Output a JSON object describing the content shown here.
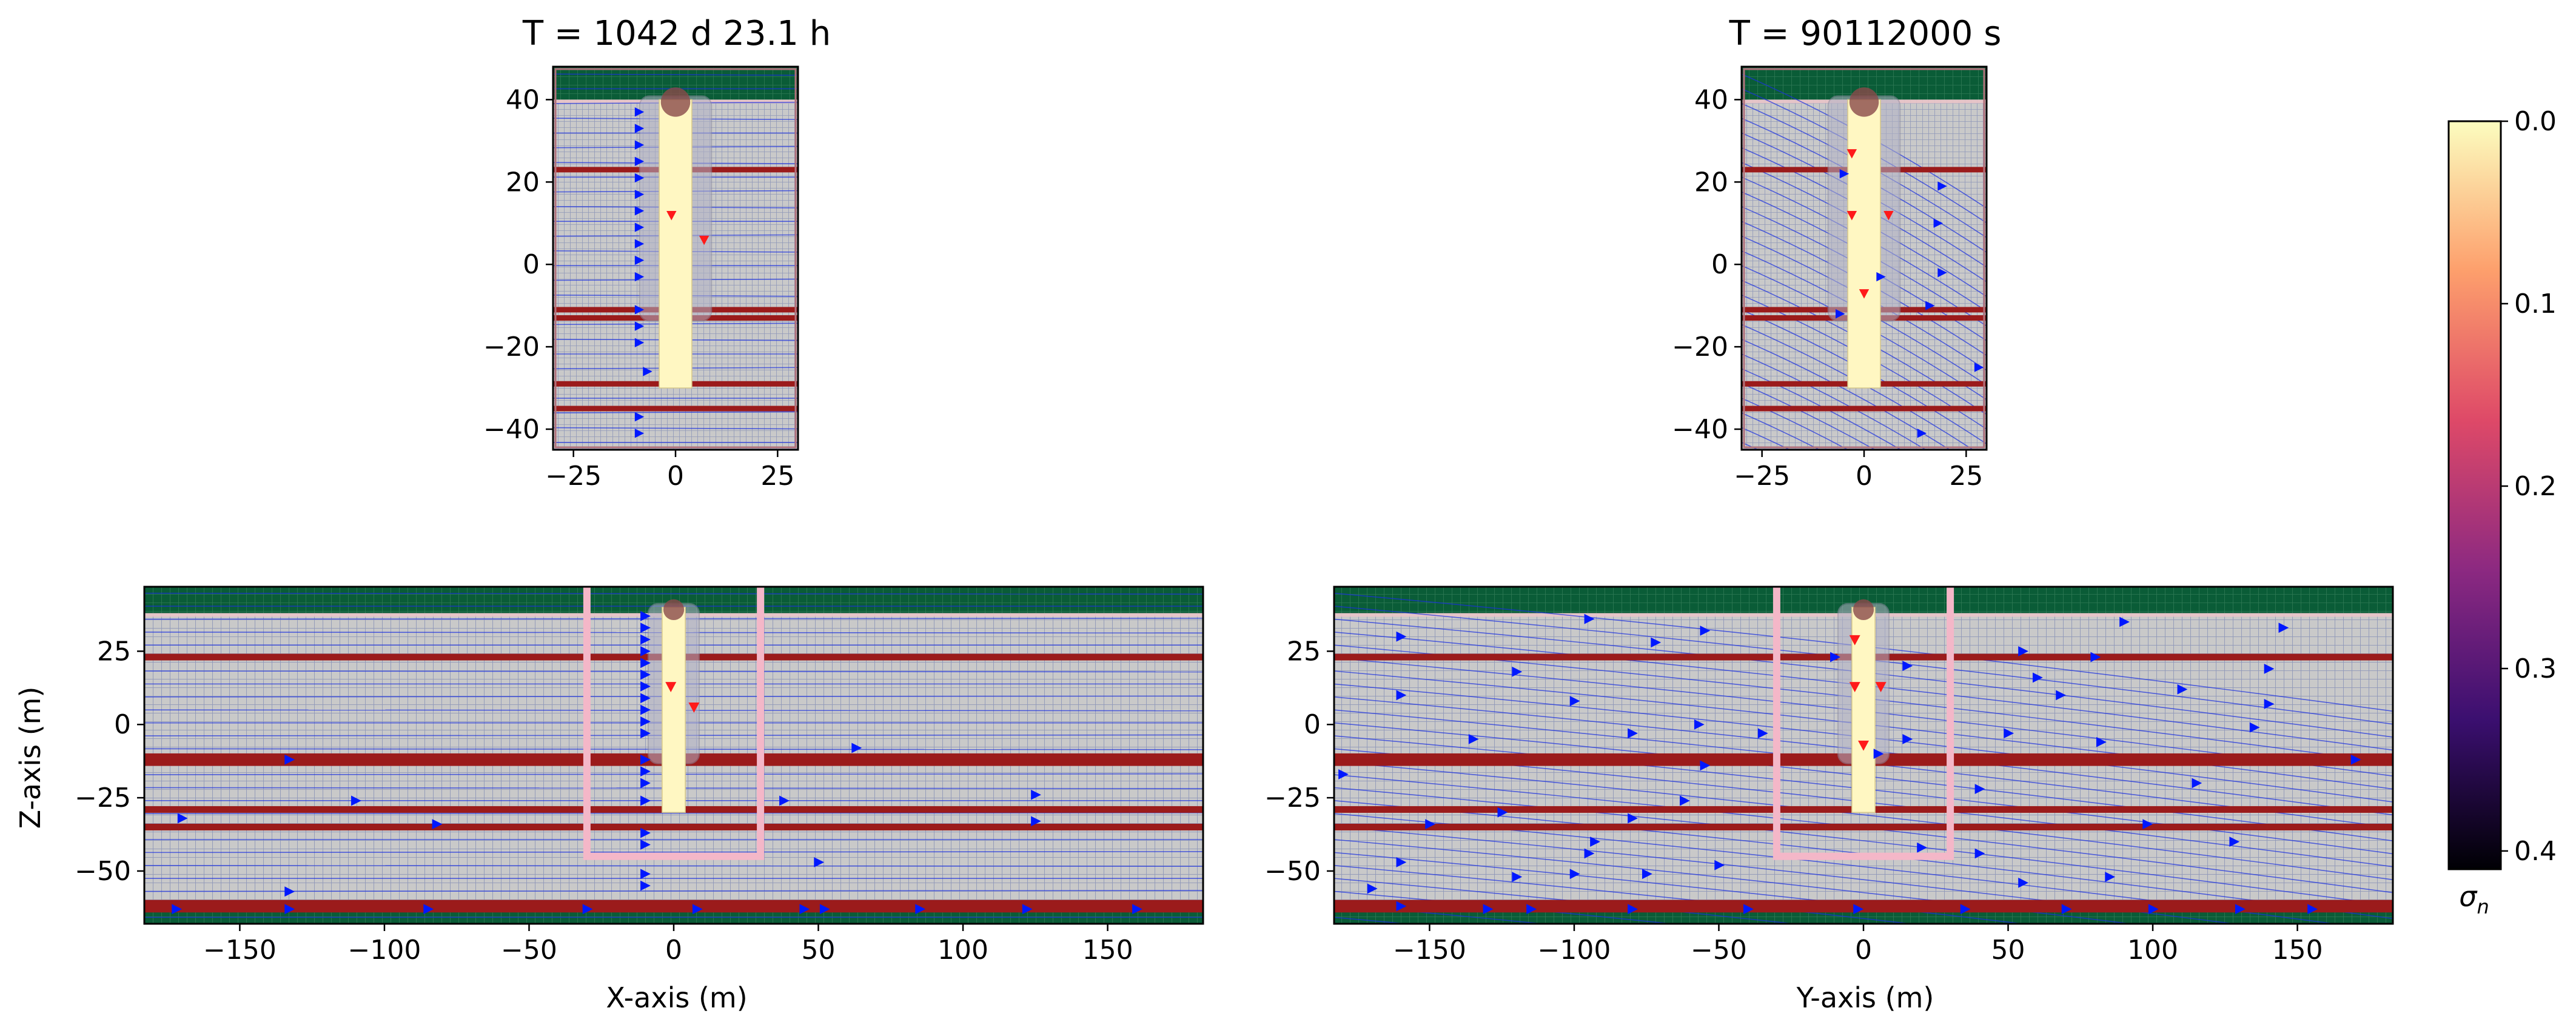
{
  "figure": {
    "colorbar": {
      "label": "σn",
      "label_main": "σ",
      "label_sub": "n",
      "ticks": [
        "0.0",
        "0.1",
        "0.2",
        "0.3",
        "0.4"
      ],
      "tick_values": [
        0.0,
        0.1,
        0.2,
        0.3,
        0.4
      ],
      "range": [
        0.0,
        0.41
      ],
      "reversed": true,
      "colormap": "magma_r",
      "stops": [
        "#fcfdbf",
        "#fd9f6c",
        "#de4968",
        "#8c2981",
        "#3b0f70",
        "#000004"
      ]
    },
    "colors": {
      "layer_band": "#9b1b1b",
      "top_band": "#0a5c37",
      "background": "#c9c9c9",
      "grid": "#8f97b8",
      "streamline": "#1a2fe0",
      "arrow_blue": "#0018ff",
      "arrow_red": "#ff1a1a",
      "pillar": "#fff7c2",
      "window_outline": "#f4b7c8"
    }
  },
  "chart_data": [
    {
      "id": "top-left",
      "type": "vector-field",
      "title": "T = 1042 d 23.1 h",
      "xlim": [
        -30,
        30
      ],
      "ylim": [
        -45,
        48
      ],
      "xticks": [
        -25,
        0,
        25
      ],
      "yticks": [
        40,
        20,
        0,
        -20,
        -40
      ],
      "xlabel": "",
      "ylabel": "",
      "layers_z": [
        23,
        -11,
        -13,
        -29,
        -35
      ],
      "top_band_z": [
        40,
        48
      ],
      "pillar_x": [
        -4,
        4
      ],
      "pillar_z": [
        -30,
        40
      ],
      "blue_arrows": [
        [
          -9,
          37
        ],
        [
          -9,
          33
        ],
        [
          -9,
          29
        ],
        [
          -9,
          25
        ],
        [
          -9,
          21
        ],
        [
          -9,
          17
        ],
        [
          -9,
          13
        ],
        [
          -9,
          9
        ],
        [
          -9,
          5
        ],
        [
          -9,
          1
        ],
        [
          -9,
          -3
        ],
        [
          -9,
          -11
        ],
        [
          -9,
          -15
        ],
        [
          -9,
          -19
        ],
        [
          -7,
          -26
        ],
        [
          -9,
          -37
        ],
        [
          -9,
          -41
        ]
      ],
      "red_arrows": [
        [
          -1,
          12
        ],
        [
          7,
          6
        ]
      ],
      "streamline_style": "horizontal",
      "show_window": false
    },
    {
      "id": "top-right",
      "type": "vector-field",
      "title": "T = 90112000 s",
      "xlim": [
        -30,
        30
      ],
      "ylim": [
        -45,
        48
      ],
      "xticks": [
        -25,
        0,
        25
      ],
      "yticks": [
        40,
        20,
        0,
        -20,
        -40
      ],
      "xlabel": "",
      "ylabel": "",
      "layers_z": [
        23,
        -11,
        -13,
        -29,
        -35
      ],
      "top_band_z": [
        40,
        48
      ],
      "pillar_x": [
        -4,
        4
      ],
      "pillar_z": [
        -30,
        40
      ],
      "blue_arrows": [
        [
          -5,
          22
        ],
        [
          19,
          19
        ],
        [
          18,
          10
        ],
        [
          19,
          -2
        ],
        [
          4,
          -3
        ],
        [
          16,
          -10
        ],
        [
          -6,
          -12
        ],
        [
          28,
          -25
        ],
        [
          14,
          -41
        ]
      ],
      "red_arrows": [
        [
          -3,
          27
        ],
        [
          -3,
          12
        ],
        [
          6,
          12
        ],
        [
          0,
          -7
        ]
      ],
      "streamline_style": "diagonal",
      "show_window": false
    },
    {
      "id": "bottom-left",
      "type": "vector-field",
      "title": "",
      "xlim": [
        -183,
        183
      ],
      "ylim": [
        -68,
        47
      ],
      "xticks": [
        -150,
        -100,
        -50,
        0,
        50,
        100,
        150
      ],
      "yticks": [
        25,
        0,
        -25,
        -50
      ],
      "xlabel": "X-axis (m)",
      "ylabel": "Z-axis (m)",
      "layers_z": [
        23,
        -11,
        -13,
        -29,
        -35,
        -61,
        -63
      ],
      "top_band_z": [
        38,
        47
      ],
      "bottom_band_z": [
        -68,
        -64
      ],
      "pillar_x": [
        -4,
        4
      ],
      "pillar_z": [
        -30,
        40
      ],
      "window": {
        "x": [
          -30,
          30
        ],
        "z": [
          -45,
          47
        ]
      },
      "blue_arrows": [
        [
          -10,
          37
        ],
        [
          -10,
          33
        ],
        [
          -10,
          29
        ],
        [
          -10,
          25
        ],
        [
          -10,
          21
        ],
        [
          -10,
          17
        ],
        [
          -10,
          13
        ],
        [
          -10,
          9
        ],
        [
          -10,
          5
        ],
        [
          -10,
          1
        ],
        [
          -10,
          -3
        ],
        [
          -10,
          -12
        ],
        [
          -10,
          -16
        ],
        [
          -10,
          -20
        ],
        [
          -10,
          -26
        ],
        [
          -10,
          -37
        ],
        [
          -10,
          -41
        ],
        [
          -10,
          -51
        ],
        [
          -10,
          -55
        ],
        [
          -133,
          -12
        ],
        [
          -110,
          -26
        ],
        [
          -170,
          -32
        ],
        [
          -82,
          -34
        ],
        [
          63,
          -8
        ],
        [
          125,
          -24
        ],
        [
          125,
          -33
        ],
        [
          38,
          -26
        ],
        [
          50,
          -47
        ],
        [
          -133,
          -57
        ],
        [
          -172,
          -63
        ],
        [
          -133,
          -63
        ],
        [
          -85,
          -63
        ],
        [
          -30,
          -63
        ],
        [
          8,
          -63
        ],
        [
          45,
          -63
        ],
        [
          52,
          -63
        ],
        [
          85,
          -63
        ],
        [
          122,
          -63
        ],
        [
          160,
          -63
        ]
      ],
      "red_arrows": [
        [
          -1,
          13
        ],
        [
          7,
          6
        ]
      ],
      "streamline_style": "horizontal",
      "show_window": true
    },
    {
      "id": "bottom-right",
      "type": "vector-field",
      "title": "",
      "xlim": [
        -183,
        183
      ],
      "ylim": [
        -68,
        47
      ],
      "xticks": [
        -150,
        -100,
        -50,
        0,
        50,
        100,
        150
      ],
      "yticks": [
        25,
        0,
        -25,
        -50
      ],
      "xlabel": "Y-axis (m)",
      "ylabel": "",
      "layers_z": [
        23,
        -11,
        -13,
        -29,
        -35,
        -61,
        -63
      ],
      "top_band_z": [
        38,
        47
      ],
      "bottom_band_z": [
        -68,
        -64
      ],
      "pillar_x": [
        -4,
        4
      ],
      "pillar_z": [
        -30,
        40
      ],
      "window": {
        "x": [
          -30,
          30
        ],
        "z": [
          -45,
          47
        ]
      },
      "blue_arrows": [
        [
          -160,
          30
        ],
        [
          -95,
          36
        ],
        [
          -72,
          28
        ],
        [
          -55,
          32
        ],
        [
          -10,
          23
        ],
        [
          15,
          20
        ],
        [
          -80,
          -3
        ],
        [
          -57,
          0
        ],
        [
          -35,
          -3
        ],
        [
          15,
          -5
        ],
        [
          5,
          -10
        ],
        [
          -150,
          -34
        ],
        [
          -125,
          -30
        ],
        [
          -80,
          -32
        ],
        [
          -62,
          -26
        ],
        [
          -120,
          -52
        ],
        [
          -100,
          -51
        ],
        [
          -93,
          -40
        ],
        [
          -95,
          -44
        ],
        [
          -75,
          -51
        ],
        [
          -50,
          -48
        ],
        [
          -160,
          -47
        ],
        [
          -170,
          -56
        ],
        [
          -160,
          -62
        ],
        [
          -130,
          -63
        ],
        [
          -115,
          -63
        ],
        [
          -80,
          -63
        ],
        [
          -40,
          -63
        ],
        [
          -2,
          -63
        ],
        [
          35,
          -63
        ],
        [
          70,
          -63
        ],
        [
          100,
          -63
        ],
        [
          130,
          -63
        ],
        [
          155,
          -63
        ],
        [
          -180,
          -17
        ],
        [
          -55,
          -14
        ],
        [
          40,
          -22
        ],
        [
          55,
          25
        ],
        [
          60,
          16
        ],
        [
          80,
          23
        ],
        [
          90,
          35
        ],
        [
          145,
          33
        ],
        [
          68,
          10
        ],
        [
          82,
          -6
        ],
        [
          110,
          12
        ],
        [
          115,
          -20
        ],
        [
          140,
          19
        ],
        [
          140,
          7
        ],
        [
          135,
          -1
        ],
        [
          170,
          -12
        ],
        [
          50,
          -3
        ],
        [
          40,
          -44
        ],
        [
          55,
          -54
        ],
        [
          20,
          -42
        ],
        [
          98,
          -34
        ],
        [
          85,
          -52
        ],
        [
          128,
          -40
        ],
        [
          -160,
          10
        ],
        [
          -120,
          18
        ],
        [
          -100,
          8
        ],
        [
          -135,
          -5
        ]
      ],
      "red_arrows": [
        [
          -3,
          29
        ],
        [
          -3,
          13
        ],
        [
          6,
          13
        ],
        [
          0,
          -7
        ]
      ],
      "streamline_style": "diagonal",
      "show_window": true
    }
  ]
}
